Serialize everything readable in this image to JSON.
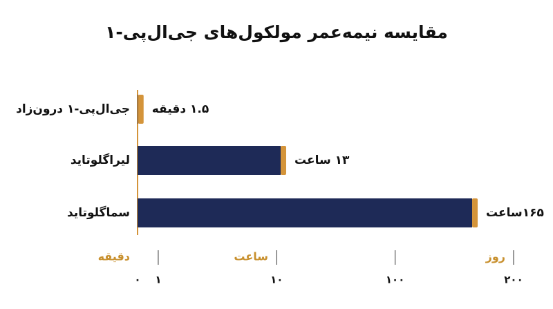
{
  "chart_data": {
    "type": "bar",
    "orientation": "horizontal",
    "title": "مقایسه نیمه‌عمر مولکول‌های جی‌ال‌پی-۱",
    "categories": [
      "جی‌ال‌پی-۱ درون‌زاد",
      "لیراگلوتاید",
      "سماگلوتاید"
    ],
    "values": [
      0.025,
      13,
      165
    ],
    "value_labels": [
      "۱.۵ دقیقه",
      "۱۳ ساعت",
      "۱۶۵ساعت"
    ],
    "color": "#1e2a57",
    "cap_color": "#d4943a",
    "x_unit_labels": [
      "دقیقه",
      "ساعت",
      "روز"
    ],
    "xscale": "piecewise",
    "xlim": [
      0,
      200
    ],
    "xticks": [
      {
        "value": 0,
        "label": "۰"
      },
      {
        "value": 1,
        "label": "۱"
      },
      {
        "value": 10,
        "label": "۱۰"
      },
      {
        "value": 100,
        "label": "۱۰۰"
      },
      {
        "value": 200,
        "label": "۲۰۰"
      }
    ]
  }
}
